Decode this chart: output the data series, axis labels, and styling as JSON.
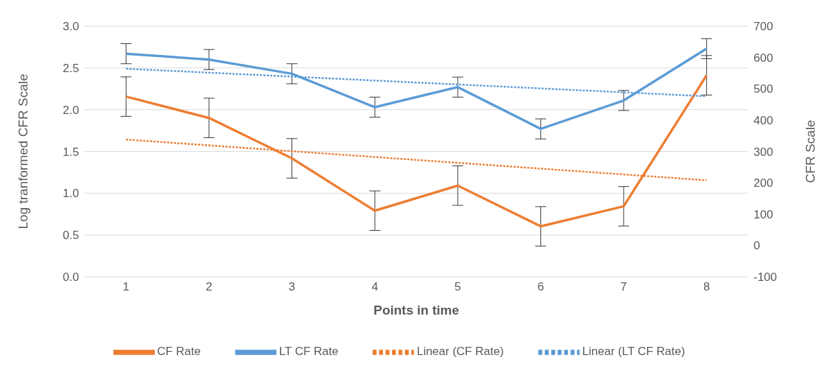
{
  "chart_data": {
    "type": "line",
    "xlabel": "Points in time",
    "ylabel": "Log tranformed CFR Scale",
    "y2label": "CFR Scale",
    "categories": [
      "1",
      "2",
      "3",
      "4",
      "5",
      "6",
      "7",
      "8"
    ],
    "series": [
      {
        "name": "CF Rate",
        "color": "#ed7d31",
        "axis": "y2",
        "values": [
          475,
          407,
          278,
          111,
          191,
          61,
          125,
          543
        ],
        "errors": [
          63,
          63,
          63,
          63,
          63,
          63,
          63,
          63
        ]
      },
      {
        "name": "LT CF Rate",
        "color": "#5b9bd5",
        "values": [
          2.67,
          2.6,
          2.43,
          2.03,
          2.27,
          1.77,
          2.11,
          2.73
        ],
        "errors": [
          0.12,
          0.12,
          0.12,
          0.12,
          0.12,
          0.12,
          0.12,
          0.12
        ]
      },
      {
        "name": "Linear (CF Rate)",
        "color": "#ed7d31",
        "axis": "y2",
        "line_style": "dotted",
        "x": [
          "1",
          "8"
        ],
        "values": [
          338,
          208
        ]
      },
      {
        "name": "Linear (LT CF Rate)",
        "color": "#5b9bd5",
        "line_style": "dotted",
        "x": [
          "1",
          "8"
        ],
        "values": [
          2.49,
          2.16
        ]
      }
    ],
    "ylim": [
      0,
      3
    ],
    "yticks": [
      {
        "value": 0,
        "label": "0.0"
      },
      {
        "value": 0.5,
        "label": "0.5"
      },
      {
        "value": 1,
        "label": "1.0"
      },
      {
        "value": 1.5,
        "label": "1.5"
      },
      {
        "value": 2,
        "label": "2.0"
      },
      {
        "value": 2.5,
        "label": "2.5"
      },
      {
        "value": 3,
        "label": "3.0"
      }
    ],
    "y2lim": [
      -100,
      700
    ],
    "y2ticks": [
      -100,
      0,
      100,
      200,
      300,
      400,
      500,
      600,
      700
    ],
    "grid": "y",
    "legend": "bottom",
    "line_style": "solid",
    "marker": "none"
  }
}
